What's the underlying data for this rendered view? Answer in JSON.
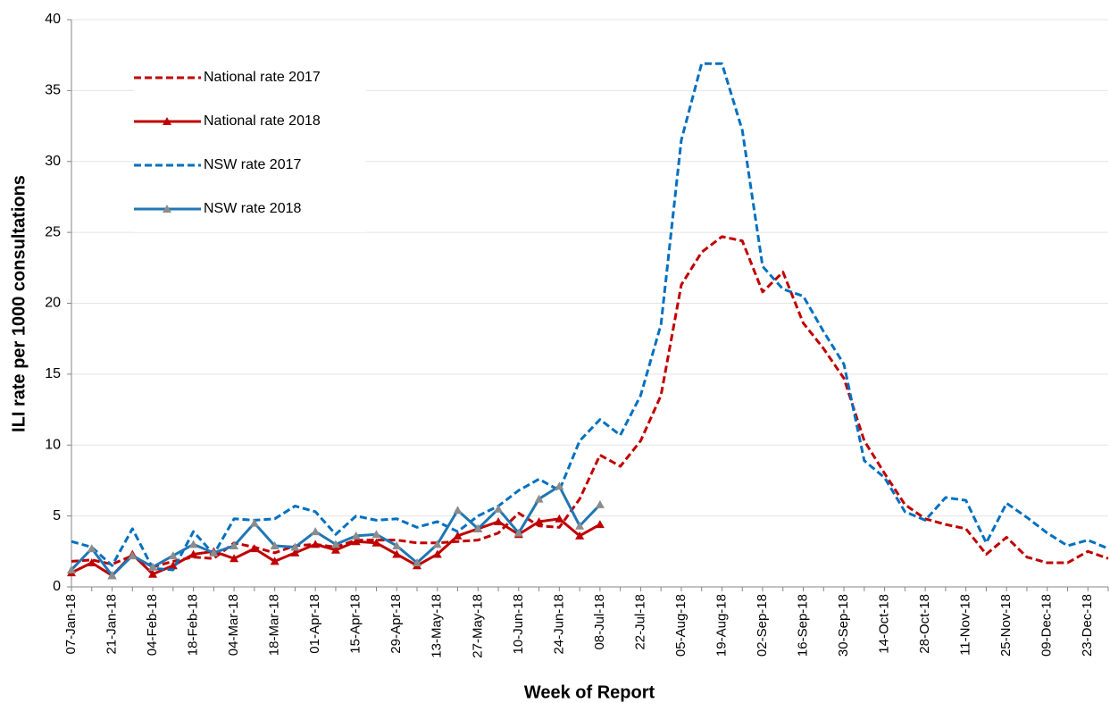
{
  "chart_data": {
    "type": "line",
    "xlabel": "Week of Report",
    "ylabel": "ILI rate per 1000 consultations",
    "categories": [
      "07-Jan-18",
      null,
      "21-Jan-18",
      null,
      "04-Feb-18",
      null,
      "18-Feb-18",
      null,
      "04-Mar-18",
      null,
      "18-Mar-18",
      null,
      "01-Apr-18",
      null,
      "15-Apr-18",
      null,
      "29-Apr-18",
      null,
      "13-May-18",
      null,
      "27-May-18",
      null,
      "10-Jun-18",
      null,
      "24-Jun-18",
      null,
      "08-Jul-18",
      null,
      "22-Jul-18",
      null,
      "05-Aug-18",
      null,
      "19-Aug-18",
      null,
      "02-Sep-18",
      null,
      "16-Sep-18",
      null,
      "30-Sep-18",
      null,
      "14-Oct-18",
      null,
      "28-Oct-18",
      null,
      "11-Nov-18",
      null,
      "25-Nov-18",
      null,
      "09-Dec-18",
      null,
      "23-Dec-18",
      null
    ],
    "ylim": [
      0,
      40
    ],
    "yticks": [
      0,
      5,
      10,
      15,
      20,
      25,
      30,
      35,
      40
    ],
    "grid": true,
    "legend": "top-left",
    "series": [
      {
        "name": "National rate 2017",
        "color": "#c00000",
        "line_style": "dashed",
        "values": [
          1.8,
          1.9,
          1.6,
          2.2,
          1.4,
          1.8,
          2.1,
          2.0,
          3.1,
          2.8,
          2.4,
          2.9,
          3.0,
          2.8,
          3.3,
          3.3,
          3.3,
          3.1,
          3.1,
          3.2,
          3.3,
          3.8,
          5.2,
          4.3,
          4.2,
          6.2,
          9.3,
          8.5,
          10.3,
          13.5,
          21.3,
          23.6,
          24.7,
          24.4,
          20.8,
          22.2,
          18.6,
          16.8,
          14.7,
          10.3,
          8.0,
          5.8,
          4.8,
          4.4,
          4.1,
          2.3,
          3.5,
          2.1,
          1.7,
          1.7,
          2.5,
          2.0
        ]
      },
      {
        "name": "National rate 2018",
        "color": "#c00000",
        "line_style": "solid",
        "marker": "triangle",
        "marker_color": "#c00000",
        "values": [
          1.0,
          1.7,
          0.8,
          2.3,
          0.9,
          1.5,
          2.3,
          2.5,
          2.0,
          2.7,
          1.8,
          2.4,
          3.0,
          2.6,
          3.2,
          3.1,
          2.3,
          1.5,
          2.3,
          3.6,
          4.1,
          4.6,
          3.7,
          4.6,
          4.8,
          3.6,
          4.4,
          null,
          null,
          null,
          null,
          null,
          null,
          null,
          null,
          null,
          null,
          null,
          null,
          null,
          null,
          null,
          null,
          null,
          null,
          null,
          null,
          null,
          null,
          null,
          null,
          null
        ]
      },
      {
        "name": "NSW rate 2017",
        "color": "#0070c0",
        "line_style": "dashed",
        "values": [
          3.2,
          2.8,
          1.5,
          4.1,
          1.3,
          1.2,
          3.9,
          2.3,
          4.8,
          4.7,
          4.8,
          5.7,
          5.3,
          3.7,
          5.0,
          4.7,
          4.8,
          4.2,
          4.6,
          3.9,
          5.0,
          5.7,
          6.8,
          7.6,
          6.8,
          10.3,
          11.8,
          10.7,
          13.5,
          18.5,
          31.5,
          36.9,
          36.9,
          32.2,
          22.6,
          21.0,
          20.5,
          18.0,
          15.7,
          8.9,
          7.7,
          5.3,
          4.7,
          6.3,
          6.1,
          3.1,
          5.9,
          4.9,
          3.8,
          2.9,
          3.3,
          2.7
        ]
      },
      {
        "name": "NSW rate 2018",
        "color": "#1f77b4",
        "line_style": "solid",
        "marker": "triangle",
        "marker_color": "#8c8c8c",
        "values": [
          1.2,
          2.7,
          0.8,
          2.2,
          1.4,
          2.2,
          3.0,
          2.4,
          2.9,
          4.5,
          2.9,
          2.8,
          3.9,
          3.0,
          3.6,
          3.7,
          2.9,
          1.7,
          3.0,
          5.4,
          4.1,
          5.5,
          3.8,
          6.2,
          7.1,
          4.3,
          5.8,
          null,
          null,
          null,
          null,
          null,
          null,
          null,
          null,
          null,
          null,
          null,
          null,
          null,
          null,
          null,
          null,
          null,
          null,
          null,
          null,
          null,
          null,
          null,
          null,
          null
        ]
      }
    ]
  }
}
